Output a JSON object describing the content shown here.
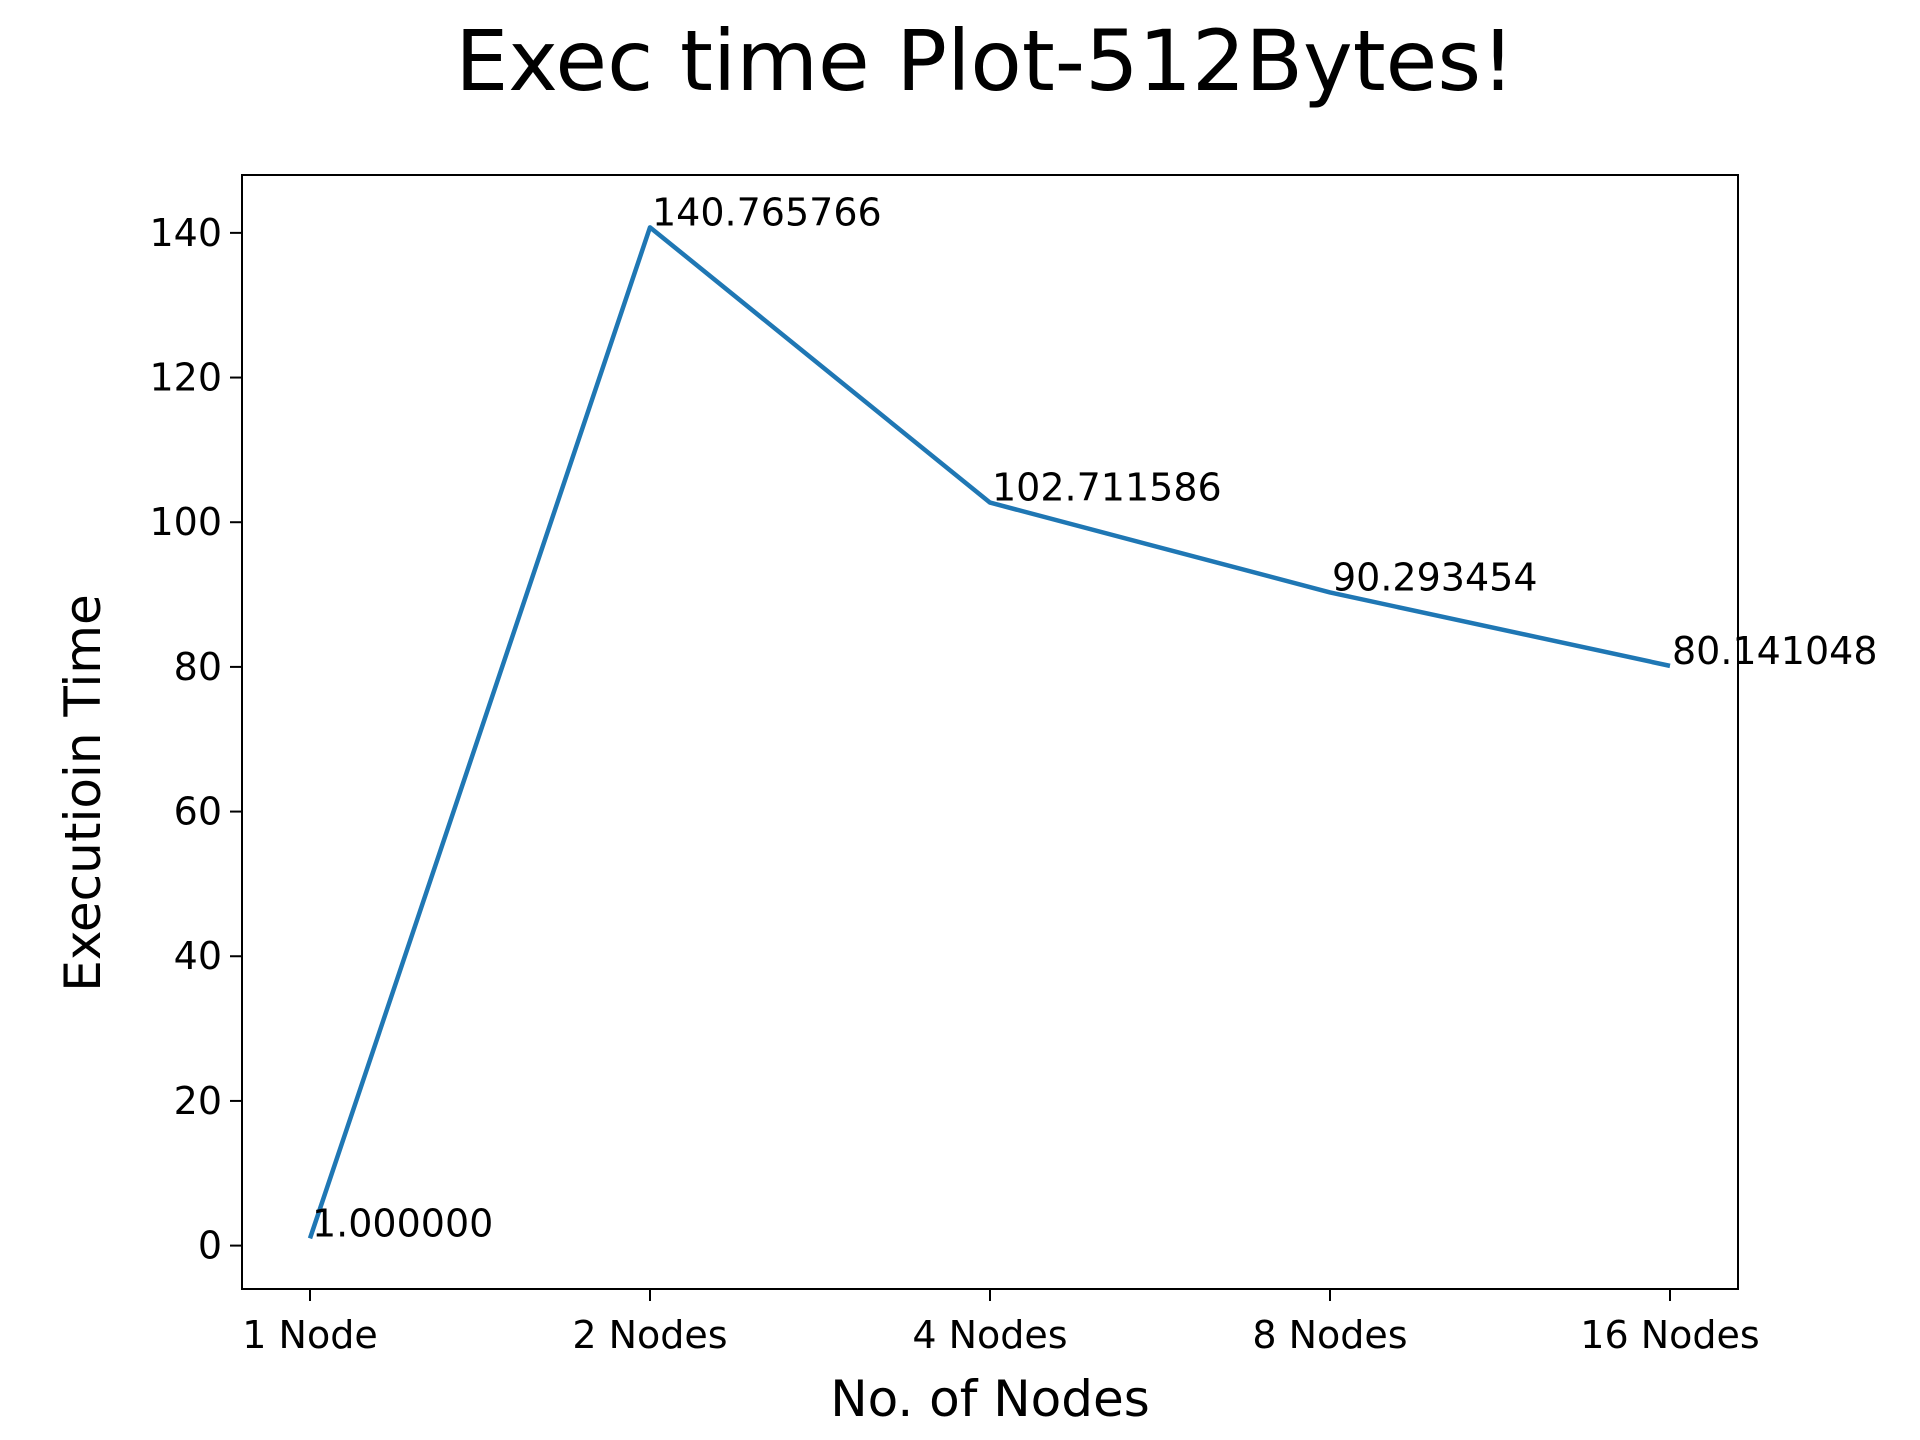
{
  "chart_data": {
    "type": "line",
    "title": "Exec time Plot-512Bytes!",
    "xlabel": "No. of Nodes",
    "ylabel": "Executioin Time",
    "categories": [
      "1 Node",
      "2 Nodes",
      "4 Nodes",
      "8 Nodes",
      "16 Nodes"
    ],
    "series": [
      {
        "values": [
          1.0,
          140.765766,
          102.711586,
          90.293454,
          80.141048
        ]
      }
    ],
    "data_labels": [
      "1.000000",
      "140.765766",
      "102.711586",
      "90.293454",
      "80.141048"
    ],
    "ylim": [
      -6,
      148
    ],
    "yticks": [
      0,
      20,
      40,
      60,
      80,
      100,
      120,
      140
    ],
    "grid": false,
    "legend": "none",
    "line_color": "#1f77b4"
  }
}
